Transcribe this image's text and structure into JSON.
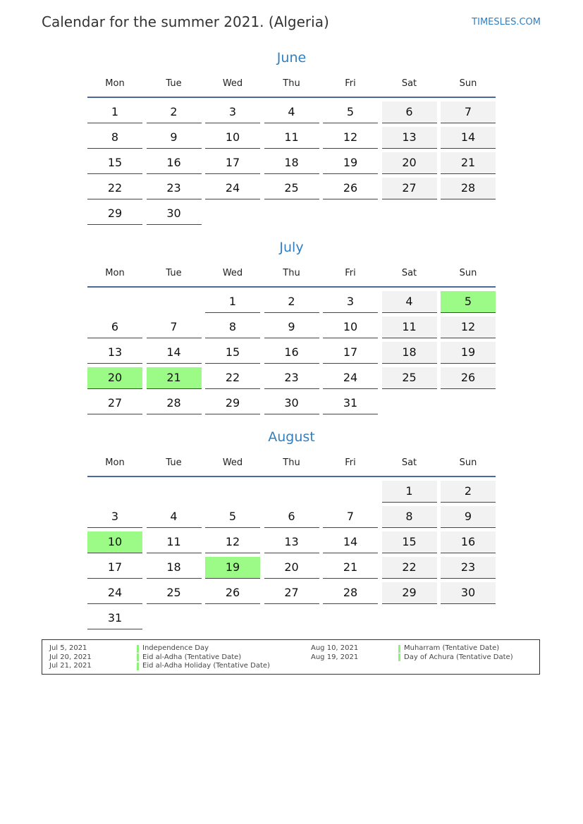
{
  "header": {
    "title": "Calendar for the summer 2021. (Algeria)",
    "site": "TIMESLES.COM"
  },
  "weekdays": [
    "Mon",
    "Tue",
    "Wed",
    "Thu",
    "Fri",
    "Sat",
    "Sun"
  ],
  "colors": {
    "accent": "#2f7fc1",
    "weekend": "#f2f2f2",
    "holiday": "#9cfb86",
    "rule": "#4a6898"
  },
  "months": [
    {
      "name": "June",
      "start_weekday": 1,
      "days": 30,
      "holidays": []
    },
    {
      "name": "July",
      "start_weekday": 3,
      "days": 31,
      "holidays": [
        5,
        20,
        21
      ]
    },
    {
      "name": "August",
      "start_weekday": 6,
      "days": 31,
      "holidays": [
        10,
        19
      ]
    }
  ],
  "legend": [
    {
      "date": "Jul 5, 2021",
      "name": "Independence Day"
    },
    {
      "date": "Jul 20, 2021",
      "name": "Eid al-Adha (Tentative Date)"
    },
    {
      "date": "Jul 21, 2021",
      "name": "Eid al-Adha Holiday (Tentative Date)"
    },
    {
      "date": "Aug 10, 2021",
      "name": "Muharram (Tentative Date)"
    },
    {
      "date": "Aug 19, 2021",
      "name": "Day of Achura (Tentative Date)"
    }
  ]
}
